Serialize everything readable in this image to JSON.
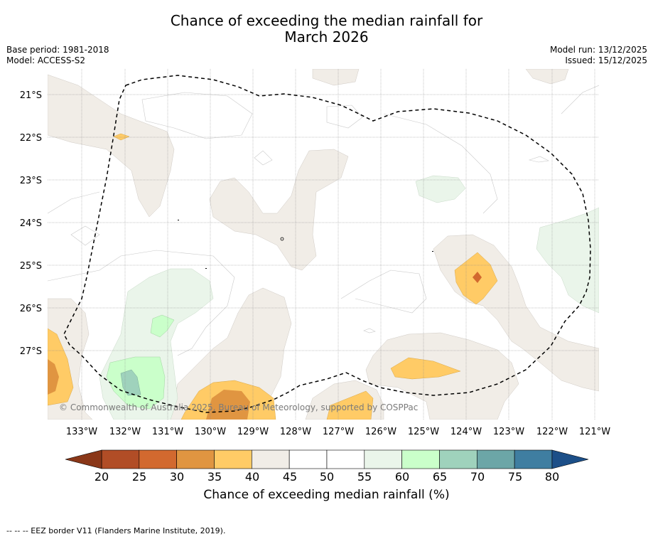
{
  "title_line1": "Chance of exceeding the median rainfall for",
  "title_line2": "March 2026",
  "meta": {
    "base_period": "Base period: 1981-2018",
    "model": "Model: ACCESS-S2",
    "model_run": "Model run: 13/12/2025",
    "issued": "Issued: 15/12/2025"
  },
  "lat_labels": [
    "21°S",
    "22°S",
    "23°S",
    "24°S",
    "25°S",
    "26°S",
    "27°S"
  ],
  "lon_labels": [
    "133°W",
    "132°W",
    "131°W",
    "130°W",
    "129°W",
    "128°W",
    "127°W",
    "126°W",
    "125°W",
    "124°W",
    "123°W",
    "122°W",
    "121°W"
  ],
  "copyright": "© Commonwealth of Australia 2025, Bureau of Meteorology, supported by COSPPac",
  "colorbar": {
    "ticks": [
      "20",
      "25",
      "30",
      "35",
      "40",
      "45",
      "50",
      "55",
      "60",
      "65",
      "70",
      "75",
      "80"
    ],
    "colors": [
      "#b14d26",
      "#d2692f",
      "#e09541",
      "#ffcb66",
      "#f1ede7",
      "#ffffff",
      "#ffffff",
      "#eaf5ea",
      "#caffca",
      "#9fd2bc",
      "#6ca6a7",
      "#3f7ea1"
    ],
    "under_color": "#8a3718",
    "over_color": "#1c4f88",
    "label": "Chance of exceeding median rainfall (%)"
  },
  "colors": {
    "beige": "#f1ede7",
    "light_green": "#eaf5ea",
    "green": "#caffca",
    "teal": "#9fd2bc",
    "orange": "#ffcb66",
    "dark_orange": "#e09541",
    "brown": "#d2692f"
  },
  "footnote": "-- -- -- EEZ border V11 (Flanders Marine Institute, 2019)."
}
